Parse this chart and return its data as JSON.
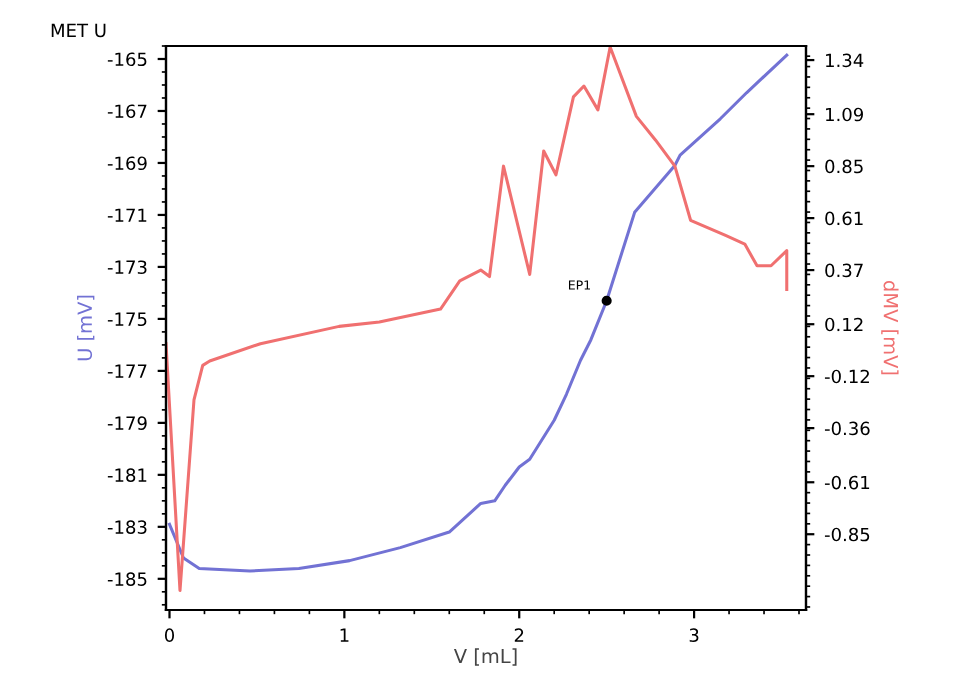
{
  "chart_data": {
    "type": "line",
    "title": "MET U",
    "xlabel": "V [mL]",
    "ylabel": "U [mV]",
    "y2label": "dMV [mV]",
    "xlim": [
      -0.02,
      3.64
    ],
    "xticks": [
      0,
      1,
      2,
      3
    ],
    "ylim": [
      -186.2,
      -164.5
    ],
    "yticks": [
      -185,
      -183,
      -181,
      -179,
      -177,
      -175,
      -173,
      -171,
      -169,
      -167,
      -165
    ],
    "y2lim": [
      -1.2,
      1.405
    ],
    "y2ticks": [
      -0.85,
      -0.61,
      -0.36,
      -0.12,
      0.12,
      0.37,
      0.61,
      0.85,
      1.09,
      1.34
    ],
    "grid": false,
    "legend": false,
    "marker": "none",
    "line_style": "solid",
    "annotations": [
      {
        "text": "EP1",
        "x": 2.5,
        "y": -174.3
      }
    ],
    "series": [
      {
        "color": "#7272d4",
        "x": [
          0,
          0.08,
          0.17,
          0.46,
          0.74,
          1.03,
          1.32,
          1.6,
          1.78,
          1.86,
          1.92,
          2.0,
          2.06,
          2.2,
          2.27,
          2.35,
          2.41,
          2.5,
          2.66,
          2.89,
          2.92,
          3.15,
          3.3,
          3.53
        ],
        "values": [
          -182.9,
          -184.2,
          -184.6,
          -184.7,
          -184.6,
          -184.3,
          -183.8,
          -183.2,
          -182.1,
          -182.0,
          -181.4,
          -180.7,
          -180.4,
          -178.9,
          -177.9,
          -176.6,
          -175.8,
          -174.3,
          -170.9,
          -169.1,
          -168.7,
          -167.3,
          -166.3,
          -164.85
        ]
      },
      {
        "color": "#f07070",
        "axis": "y2",
        "x": [
          -0.02,
          0.06,
          0.14,
          0.19,
          0.23,
          0.52,
          0.97,
          1.2,
          1.55,
          1.66,
          1.78,
          1.83,
          1.91,
          2.06,
          2.14,
          2.21,
          2.31,
          2.37,
          2.45,
          2.52,
          2.67,
          2.78,
          2.89,
          2.98,
          3.18,
          3.29,
          3.36,
          3.44,
          3.53,
          3.53
        ],
        "values": [
          0.03,
          -1.11,
          -0.23,
          -0.07,
          -0.05,
          0.03,
          0.11,
          0.13,
          0.19,
          0.32,
          0.37,
          0.34,
          0.85,
          0.35,
          0.92,
          0.81,
          1.17,
          1.22,
          1.11,
          1.4,
          1.08,
          0.97,
          0.85,
          0.6,
          0.53,
          0.49,
          0.39,
          0.39,
          0.46,
          0.28
        ]
      },
      {
        "type": "scatter",
        "marker": "circle",
        "color": "#000000",
        "x": [
          2.5
        ],
        "values": [
          -174.3
        ]
      }
    ]
  }
}
